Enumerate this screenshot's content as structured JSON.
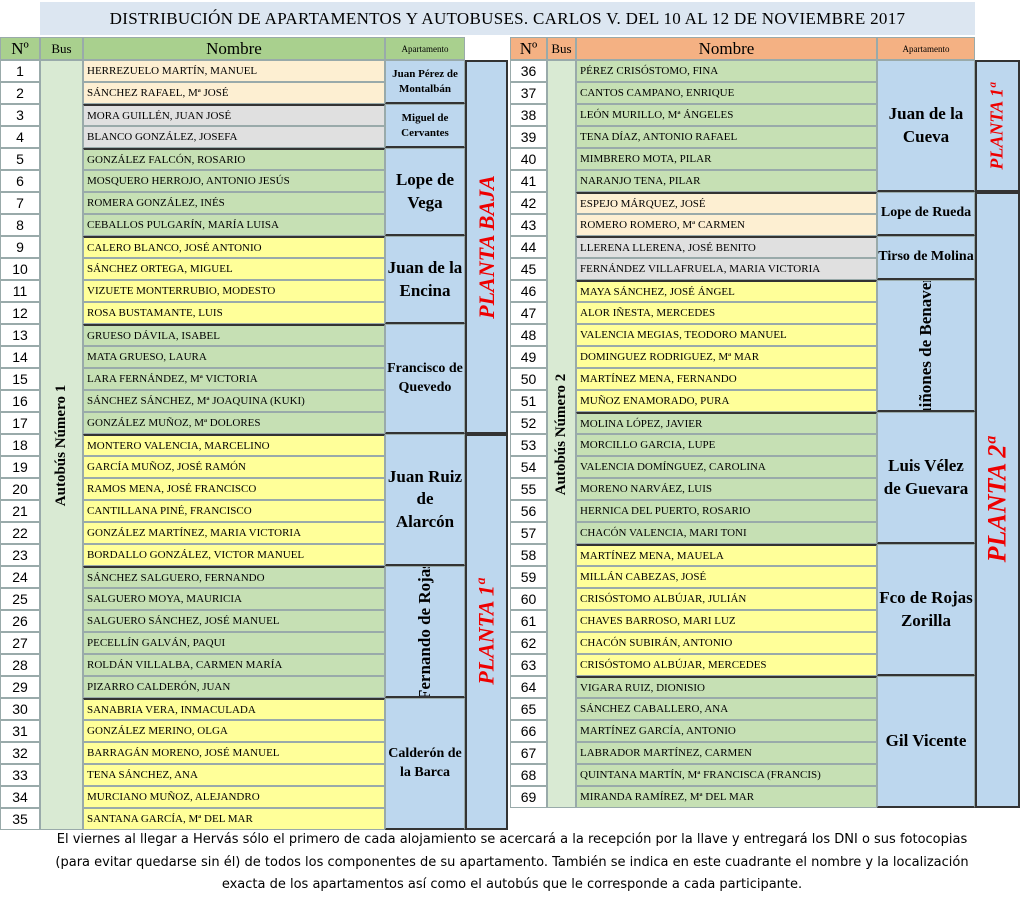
{
  "title": "DISTRIBUCIÓN DE APARTAMENTOS Y AUTOBUSES. CARLOS V. DEL 10 AL 12 DE NOVIEMBRE 2017",
  "headers": {
    "num": "Nº",
    "bus": "Bus",
    "name": "Nombre",
    "apt": "Apartamento"
  },
  "colors": {
    "peach": "#fdefd2",
    "gray": "#e0e0e0",
    "green": "#c6e0b4",
    "yellow": "#ffff99",
    "planta": "#e00000"
  },
  "left": {
    "start": 1,
    "bus": "Autobús Número 1",
    "names": [
      "HERREZUELO MARTÍN, MANUEL",
      "SÁNCHEZ RAFAEL, Mª JOSÉ",
      "MORA GUILLÉN, JUAN JOSÉ",
      "BLANCO GONZÁLEZ, JOSEFA",
      "GONZÁLEZ FALCÓN, ROSARIO",
      "MOSQUERO HERROJO, ANTONIO JESÚS",
      "ROMERA GONZÁLEZ, INÉS",
      "CEBALLOS PULGARÍN, MARÍA LUISA",
      "CALERO BLANCO, JOSÉ ANTONIO",
      "SÁNCHEZ ORTEGA, MIGUEL",
      "VIZUETE MONTERRUBIO, MODESTO",
      "ROSA BUSTAMANTE, LUIS",
      "GRUESO DÁVILA, ISABEL",
      "MATA GRUESO, LAURA",
      "LARA FERNÁNDEZ, Mª VICTORIA",
      "SÁNCHEZ SÁNCHEZ, Mª JOAQUINA (KUKI)",
      "GONZÁLEZ MUÑOZ, Mª DOLORES",
      "MONTERO VALENCIA, MARCELINO",
      "GARCÍA MUÑOZ, JOSÉ RAMÓN",
      "RAMOS MENA, JOSÉ FRANCISCO",
      "CANTILLANA PINÉ, FRANCISCO",
      "GONZÁLEZ MARTÍNEZ, MARIA VICTORIA",
      "BORDALLO GONZÁLEZ, VICTOR MANUEL",
      "SÁNCHEZ SALGUERO, FERNANDO",
      "SALGUERO MOYA, MAURICIA",
      "SALGUERO SÁNCHEZ, JOSÉ MANUEL",
      "PECELLÍN GALVÁN, PAQUI",
      "ROLDÁN VILLALBA, CARMEN MARÍA",
      "PIZARRO CALDERÓN, JUAN",
      "SANABRIA VERA, INMACULADA",
      "GONZÁLEZ MERINO, OLGA",
      "BARRAGÁN MORENO, JOSÉ MANUEL",
      "TENA SÁNCHEZ, ANA",
      "MURCIANO MUÑOZ, ALEJANDRO",
      "SANTANA GARCÍA, Mª DEL MAR"
    ],
    "apartments": [
      {
        "name": "Juan Pérez de Montalbán",
        "from": 1,
        "to": 2,
        "color": "peach",
        "style": "small"
      },
      {
        "name": "Miguel de Cervantes",
        "from": 3,
        "to": 4,
        "color": "gray",
        "style": "small"
      },
      {
        "name": "Lope de Vega",
        "from": 5,
        "to": 8,
        "color": "green"
      },
      {
        "name": "Juan de la Encina",
        "from": 9,
        "to": 12,
        "color": "yellow"
      },
      {
        "name": "Francisco de Quevedo",
        "from": 13,
        "to": 17,
        "color": "green",
        "style": "mid"
      },
      {
        "name": "Juan Ruiz de Alarcón",
        "from": 18,
        "to": 23,
        "color": "yellow"
      },
      {
        "name": "Fernando de Rojas",
        "from": 24,
        "to": 29,
        "color": "green",
        "style": "vert"
      },
      {
        "name": "Calderón de la Barca",
        "from": 30,
        "to": 35,
        "color": "yellow",
        "style": "mid"
      }
    ],
    "plantas": [
      {
        "name": "PLANTA BAJA",
        "from": 1,
        "to": 17
      },
      {
        "name": "PLANTA 1ª",
        "from": 18,
        "to": 35
      }
    ]
  },
  "right": {
    "start": 36,
    "bus": "Autobús Número 2",
    "names": [
      "PÉREZ CRISÓSTOMO, FINA",
      "CANTOS CAMPANO, ENRIQUE",
      "LEÓN MURILLO, Mª ÁNGELES",
      "TENA DÍAZ, ANTONIO RAFAEL",
      "MIMBRERO MOTA, PILAR",
      "NARANJO TENA, PILAR",
      "ESPEJO MÁRQUEZ, JOSÉ",
      "ROMERO ROMERO, Mª CARMEN",
      "LLERENA LLERENA, JOSÉ BENITO",
      "FERNÁNDEZ VILLAFRUELA, MARIA VICTORIA",
      "MAYA SÁNCHEZ, JOSÉ ÁNGEL",
      "ALOR IÑESTA, MERCEDES",
      "VALENCIA MEGIAS, TEODORO MANUEL",
      "DOMINGUEZ RODRIGUEZ, Mª MAR",
      "MARTÍNEZ MENA, FERNANDO",
      "MUÑOZ ENAMORADO, PURA",
      "MOLINA LÓPEZ, JAVIER",
      "MORCILLO GARCIA, LUPE",
      "VALENCIA DOMÍNGUEZ, CAROLINA",
      "MORENO NARVÁEZ, LUIS",
      "HERNICA DEL PUERTO, ROSARIO",
      "CHACÓN VALENCIA, MARI TONI",
      "MARTÍNEZ MENA, MAUELA",
      "MILLÁN CABEZAS, JOSÉ",
      "CRISÓSTOMO ALBÚJAR, JULIÁN",
      "CHAVES BARROSO, MARI LUZ",
      "CHACÓN SUBIRÁN, ANTONIO",
      "CRISÓSTOMO ALBÚJAR, MERCEDES",
      "VIGARA RUIZ, DIONISIO",
      "SÁNCHEZ CABALLERO, ANA",
      "MARTÍNEZ GARCÍA, ANTONIO",
      "LABRADOR MARTÍNEZ, CARMEN",
      "QUINTANA MARTÍN, Mª FRANCISCA (FRANCIS)",
      "MIRANDA RAMÍREZ, Mª DEL MAR"
    ],
    "apartments": [
      {
        "name": "Juan de la Cueva",
        "from": 36,
        "to": 41,
        "color": "green"
      },
      {
        "name": "Lope de Rueda",
        "from": 42,
        "to": 43,
        "color": "peach",
        "style": "mid2"
      },
      {
        "name": "Tirso de Molina",
        "from": 44,
        "to": 45,
        "color": "gray",
        "style": "mid2"
      },
      {
        "name": "Quiñones de Benavente",
        "from": 46,
        "to": 51,
        "color": "yellow",
        "style": "vert"
      },
      {
        "name": "Luis Vélez de Guevara",
        "from": 52,
        "to": 57,
        "color": "green"
      },
      {
        "name": "Fco de Rojas Zorilla",
        "from": 58,
        "to": 63,
        "color": "yellow"
      },
      {
        "name": "Gil Vicente",
        "from": 64,
        "to": 69,
        "color": "green"
      }
    ],
    "plantas": [
      {
        "name": "PLANTA 1ª",
        "from": 36,
        "to": 41,
        "style": "sm"
      },
      {
        "name": "PLANTA 2ª",
        "from": 42,
        "to": 69,
        "style": "lg"
      }
    ]
  },
  "footer": [
    "El viernes al llegar a Hervás sólo el primero de cada alojamiento se acercará a la recepción por la llave y entregará los DNI o sus fotocopias",
    "(para evitar quedarse sin él) de todos los componentes de su apartamento. También se indica en este cuadrante el nombre y la localización",
    "exacta de los apartamentos así como el autobús que le corresponde a cada participante."
  ]
}
